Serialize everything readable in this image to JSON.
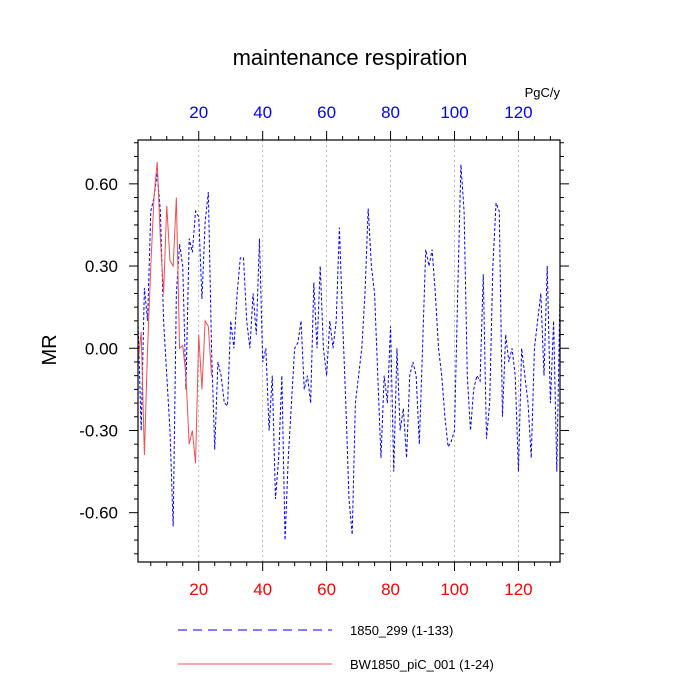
{
  "chart_data": {
    "type": "line",
    "title": "maintenance respiration",
    "ylabel": "MR",
    "units_label": "PgC/y",
    "xlim": [
      1,
      133
    ],
    "ylim": [
      -0.78,
      0.76
    ],
    "x_ticks": [
      20,
      40,
      60,
      80,
      100,
      120
    ],
    "x_tick_labels": [
      "20",
      "40",
      "60",
      "80",
      "100",
      "120"
    ],
    "y_ticks": [
      0.6,
      0.3,
      0.0,
      -0.3,
      -0.6
    ],
    "y_tick_labels": [
      "0.60",
      "0.30",
      "0.00",
      "-0.30",
      "-0.60"
    ],
    "top_axis_color": "#0000ff",
    "bottom_axis_color": "#ff0000",
    "grid": "vertical dotted at major x ticks",
    "legend_placement": "bottom",
    "series": [
      {
        "name": "1850_299 (1-133)",
        "color": "#0000ff",
        "dash": "dashed",
        "x_start": 1,
        "values": [
          0.1,
          -0.3,
          0.22,
          0.1,
          0.5,
          0.55,
          0.64,
          0.5,
          0.1,
          -0.1,
          -0.3,
          -0.65,
          0.2,
          0.38,
          0.3,
          -0.15,
          0.4,
          0.35,
          0.5,
          0.48,
          0.18,
          0.46,
          0.57,
          0.0,
          -0.37,
          -0.05,
          -0.1,
          -0.2,
          -0.21,
          0.1,
          0.0,
          0.2,
          0.33,
          0.33,
          0.1,
          0.0,
          0.2,
          0.05,
          0.4,
          -0.05,
          0.0,
          -0.3,
          -0.1,
          -0.55,
          -0.4,
          -0.1,
          -0.7,
          -0.4,
          -0.2,
          0.0,
          0.02,
          0.1,
          -0.15,
          -0.1,
          -0.2,
          0.24,
          0.0,
          0.3,
          0.0,
          -0.1,
          0.1,
          0.0,
          0.1,
          0.44,
          0.1,
          -0.2,
          -0.55,
          -0.68,
          -0.2,
          -0.1,
          0.0,
          0.2,
          0.51,
          0.3,
          0.2,
          -0.1,
          -0.4,
          -0.1,
          -0.2,
          0.08,
          -0.45,
          0.0,
          -0.3,
          -0.22,
          -0.4,
          -0.1,
          -0.05,
          -0.1,
          -0.35,
          0.0,
          0.36,
          0.3,
          0.36,
          0.2,
          0.0,
          -0.1,
          -0.25,
          -0.36,
          -0.34,
          -0.3,
          0.2,
          0.67,
          0.5,
          -0.1,
          -0.3,
          -0.15,
          -0.1,
          -0.12,
          0.27,
          -0.33,
          -0.2,
          0.3,
          0.53,
          0.5,
          -0.25,
          0.05,
          -0.05,
          0.0,
          -0.1,
          -0.45,
          0.0,
          -0.1,
          -0.2,
          -0.4,
          0.0,
          0.1,
          0.2,
          -0.1,
          0.3,
          -0.2,
          0.1,
          -0.45,
          0.2
        ]
      },
      {
        "name": "BW1850_piC_001 (1-24)",
        "color": "#f05050",
        "dash": "solid",
        "x_start": 1,
        "values": [
          -0.05,
          0.06,
          -0.39,
          0.0,
          0.3,
          0.55,
          0.68,
          0.4,
          0.2,
          0.52,
          0.32,
          0.3,
          0.55,
          0.0,
          0.01,
          -0.1,
          -0.35,
          -0.3,
          -0.42,
          0.05,
          -0.15,
          0.1,
          0.08,
          -0.1
        ]
      }
    ]
  }
}
